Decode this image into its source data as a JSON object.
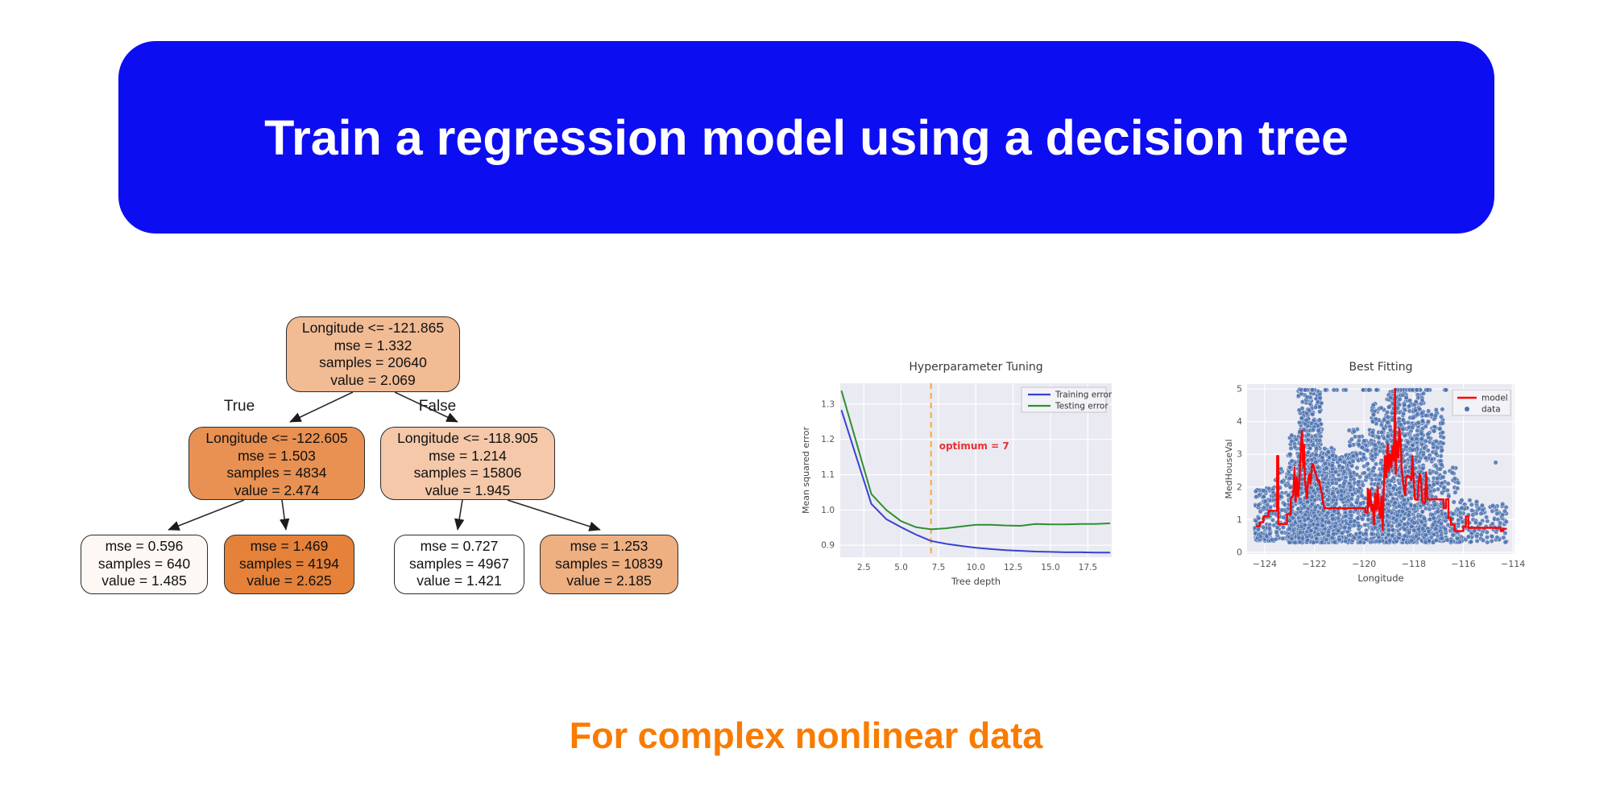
{
  "banner": {
    "title": "Train a regression model using a decision tree",
    "bg_color": "#0d0df2",
    "text_color": "#ffffff"
  },
  "caption": {
    "text": "For complex nonlinear data",
    "color": "#f97b00"
  },
  "tree": {
    "edge_labels": {
      "true": "True",
      "false": "False"
    },
    "nodes": [
      {
        "id": "root",
        "fill": "#f1bb94",
        "lines": [
          "Longitude <= -121.865",
          "mse = 1.332",
          "samples = 20640",
          "value = 2.069"
        ]
      },
      {
        "id": "l2l",
        "fill": "#e89152",
        "lines": [
          "Longitude <= -122.605",
          "mse = 1.503",
          "samples = 4834",
          "value = 2.474"
        ]
      },
      {
        "id": "l2r",
        "fill": "#f4c8a9",
        "lines": [
          "Longitude <= -118.905",
          "mse = 1.214",
          "samples = 15806",
          "value = 1.945"
        ]
      },
      {
        "id": "leaf1",
        "fill": "#fdf8f3",
        "lines": [
          "mse = 0.596",
          "samples = 640",
          "value = 1.485"
        ]
      },
      {
        "id": "leaf2",
        "fill": "#e58139",
        "lines": [
          "mse = 1.469",
          "samples = 4194",
          "value = 2.625"
        ]
      },
      {
        "id": "leaf3",
        "fill": "#ffffff",
        "lines": [
          "mse = 0.727",
          "samples = 4967",
          "value = 1.421"
        ]
      },
      {
        "id": "leaf4",
        "fill": "#eeaf81",
        "lines": [
          "mse = 1.253",
          "samples = 10839",
          "value = 2.185"
        ]
      }
    ]
  },
  "chart_data": [
    {
      "type": "line",
      "title": "Hyperparameter Tuning",
      "xlabel": "Tree depth",
      "ylabel": "Mean squared error",
      "x": [
        1,
        2,
        3,
        4,
        5,
        6,
        7,
        8,
        9,
        10,
        11,
        12,
        13,
        14,
        15,
        16,
        17,
        18,
        19
      ],
      "series": [
        {
          "name": "Training error",
          "color": "#3743cf",
          "values": [
            1.283,
            1.15,
            1.017,
            0.974,
            0.951,
            0.93,
            0.912,
            0.904,
            0.898,
            0.893,
            0.889,
            0.886,
            0.884,
            0.882,
            0.881,
            0.88,
            0.88,
            0.879,
            0.879
          ]
        },
        {
          "name": "Testing error",
          "color": "#2f9032",
          "values": [
            1.338,
            1.192,
            1.045,
            1.0,
            0.968,
            0.951,
            0.945,
            0.948,
            0.953,
            0.958,
            0.958,
            0.956,
            0.955,
            0.96,
            0.959,
            0.959,
            0.96,
            0.96,
            0.962
          ]
        }
      ],
      "annotation": {
        "text": "optimum = 7",
        "x": 7,
        "text_color": "#e83030",
        "line_color": "#ffa733"
      },
      "xticks": [
        2.5,
        5.0,
        7.5,
        10.0,
        12.5,
        15.0,
        17.5
      ],
      "yticks": [
        0.9,
        1.0,
        1.1,
        1.2,
        1.3
      ],
      "xlim": [
        0.92,
        19.1
      ],
      "ylim": [
        0.866,
        1.359
      ],
      "grid": true,
      "bg": "#eaeaf2",
      "legend_position": "upper right"
    },
    {
      "type": "scatter",
      "title": "Best Fitting",
      "xlabel": "Longitude",
      "ylabel": "MedHouseVal",
      "xticks": [
        -124,
        -122,
        -120,
        -118,
        -116,
        -114
      ],
      "yticks": [
        0,
        1,
        2,
        3,
        4,
        5
      ],
      "xlim": [
        -124.71,
        -113.94
      ],
      "ylim": [
        -0.05,
        5.15
      ],
      "grid": true,
      "bg": "#eaeaf2",
      "legend_position": "upper right",
      "model_line": {
        "name": "model",
        "color": "#ff0000",
        "points": [
          [
            -124.35,
            0.8
          ],
          [
            -124.2,
            0.8
          ],
          [
            -124.2,
            0.92
          ],
          [
            -124.05,
            0.92
          ],
          [
            -124.05,
            1.1
          ],
          [
            -123.85,
            1.1
          ],
          [
            -123.85,
            1.27
          ],
          [
            -123.5,
            1.27
          ],
          [
            -123.5,
            2.95
          ],
          [
            -123.45,
            2.95
          ],
          [
            -123.45,
            0.87
          ],
          [
            -123.1,
            0.87
          ],
          [
            -123.1,
            1.17
          ],
          [
            -122.95,
            1.17
          ],
          [
            -122.95,
            1.62
          ],
          [
            -122.85,
            1.75
          ],
          [
            -122.8,
            2.6
          ],
          [
            -122.75,
            1.55
          ],
          [
            -122.7,
            2.3
          ],
          [
            -122.65,
            1.7
          ],
          [
            -122.6,
            2.2
          ],
          [
            -122.55,
            3.1
          ],
          [
            -122.5,
            3.72
          ],
          [
            -122.45,
            2.6
          ],
          [
            -122.42,
            3.3
          ],
          [
            -122.38,
            2.2
          ],
          [
            -122.3,
            1.65
          ],
          [
            -122.25,
            2.25
          ],
          [
            -122.2,
            2.4
          ],
          [
            -122.15,
            2.1
          ],
          [
            -122.1,
            2.65
          ],
          [
            -122.05,
            2.7
          ],
          [
            -122.0,
            2.55
          ],
          [
            -121.95,
            2.4
          ],
          [
            -121.9,
            2.3
          ],
          [
            -121.85,
            2.15
          ],
          [
            -121.8,
            2.2
          ],
          [
            -121.75,
            1.95
          ],
          [
            -121.7,
            1.8
          ],
          [
            -121.65,
            1.55
          ],
          [
            -121.6,
            1.35
          ],
          [
            -119.95,
            1.35
          ],
          [
            -119.95,
            1.22
          ],
          [
            -119.85,
            1.22
          ],
          [
            -119.85,
            1.95
          ],
          [
            -119.8,
            1.4
          ],
          [
            -119.75,
            1.9
          ],
          [
            -119.7,
            1.3
          ],
          [
            -119.65,
            1.45
          ],
          [
            -119.6,
            0.85
          ],
          [
            -119.55,
            1.8
          ],
          [
            -119.5,
            1.3
          ],
          [
            -119.45,
            2.0
          ],
          [
            -119.4,
            1.3
          ],
          [
            -119.35,
            1.05
          ],
          [
            -119.3,
            1.7
          ],
          [
            -119.25,
            0.68
          ],
          [
            -119.2,
            2.1
          ],
          [
            -119.15,
            2.95
          ],
          [
            -119.1,
            2.3
          ],
          [
            -119.05,
            3.3
          ],
          [
            -119.0,
            2.5
          ],
          [
            -118.95,
            3.0
          ],
          [
            -118.9,
            2.6
          ],
          [
            -118.85,
            3.25
          ],
          [
            -118.8,
            2.8
          ],
          [
            -118.75,
            5.0
          ],
          [
            -118.72,
            2.4
          ],
          [
            -118.68,
            3.4
          ],
          [
            -118.62,
            2.9
          ],
          [
            -118.58,
            3.8
          ],
          [
            -118.52,
            3.3
          ],
          [
            -118.48,
            2.5
          ],
          [
            -118.42,
            2.1
          ],
          [
            -118.35,
            1.75
          ],
          [
            -118.3,
            2.3
          ],
          [
            -118.25,
            2.35
          ],
          [
            -118.15,
            2.3
          ],
          [
            -118.1,
            2.2
          ],
          [
            -118.05,
            2.95
          ],
          [
            -118.0,
            2.2
          ],
          [
            -117.95,
            1.62
          ],
          [
            -117.85,
            1.6
          ],
          [
            -117.8,
            2.15
          ],
          [
            -117.75,
            2.4
          ],
          [
            -117.7,
            2.1
          ],
          [
            -117.65,
            1.55
          ],
          [
            -117.55,
            1.5
          ],
          [
            -117.5,
            2.45
          ],
          [
            -117.45,
            1.62
          ],
          [
            -116.8,
            1.62
          ],
          [
            -116.8,
            1.35
          ],
          [
            -116.7,
            1.35
          ],
          [
            -116.7,
            1.62
          ],
          [
            -116.6,
            1.62
          ],
          [
            -116.6,
            1.05
          ],
          [
            -116.5,
            1.05
          ],
          [
            -116.5,
            0.85
          ],
          [
            -116.35,
            0.85
          ],
          [
            -116.35,
            0.65
          ],
          [
            -116.0,
            0.65
          ],
          [
            -116.0,
            0.78
          ],
          [
            -115.9,
            0.78
          ],
          [
            -115.9,
            1.1
          ],
          [
            -115.8,
            1.1
          ],
          [
            -115.8,
            0.75
          ],
          [
            -114.5,
            0.75
          ],
          [
            -114.5,
            0.65
          ],
          [
            -114.4,
            0.65
          ],
          [
            -114.4,
            0.72
          ],
          [
            -114.25,
            0.72
          ]
        ]
      },
      "data_points": {
        "name": "data",
        "color": "#4c72b0",
        "seed": 20640,
        "clusters": [
          {
            "x": [
              -124.4,
              -123.6
            ],
            "y": [
              0.35,
              2.0
            ],
            "n": 140,
            "pow": 1.4
          },
          {
            "x": [
              -123.6,
              -123.0
            ],
            "y": [
              0.4,
              2.6
            ],
            "n": 80,
            "pow": 1.3
          },
          {
            "x": [
              -123.05,
              -122.6
            ],
            "y": [
              0.3,
              3.6
            ],
            "n": 180,
            "pow": 1.3
          },
          {
            "x": [
              -122.65,
              -121.7
            ],
            "y": [
              0.3,
              5.0
            ],
            "n": 650,
            "pow": 1.5
          },
          {
            "x": [
              -121.7,
              -121.2
            ],
            "y": [
              0.3,
              3.2
            ],
            "n": 220,
            "pow": 1.3
          },
          {
            "x": [
              -121.3,
              -120.5
            ],
            "y": [
              0.3,
              3.0
            ],
            "n": 260,
            "pow": 1.2
          },
          {
            "x": [
              -120.6,
              -119.6
            ],
            "y": [
              0.3,
              3.8
            ],
            "n": 260,
            "pow": 1.3
          },
          {
            "x": [
              -119.7,
              -119.0
            ],
            "y": [
              0.3,
              4.6
            ],
            "n": 280,
            "pow": 1.4
          },
          {
            "x": [
              -119.1,
              -117.6
            ],
            "y": [
              0.3,
              5.0
            ],
            "n": 850,
            "pow": 1.45
          },
          {
            "x": [
              -117.7,
              -116.8
            ],
            "y": [
              0.3,
              4.4
            ],
            "n": 300,
            "pow": 1.5
          },
          {
            "x": [
              -116.9,
              -116.2
            ],
            "y": [
              0.3,
              2.6
            ],
            "n": 90,
            "pow": 1.3
          },
          {
            "x": [
              -116.3,
              -115.4
            ],
            "y": [
              0.3,
              1.6
            ],
            "n": 70,
            "pow": 1.2
          },
          {
            "x": [
              -115.5,
              -114.25
            ],
            "y": [
              0.3,
              1.5
            ],
            "n": 70,
            "pow": 1.2
          }
        ],
        "top_row": {
          "y": 4.97,
          "segments": [
            [
              -122.6,
              -121.9,
              14
            ],
            [
              -121.9,
              -120.2,
              6
            ],
            [
              -120.1,
              -119.3,
              16
            ],
            [
              -119.0,
              -117.3,
              26
            ],
            [
              -116.9,
              -116.4,
              5
            ]
          ]
        },
        "outliers": [
          [
            -114.7,
            2.75
          ]
        ]
      }
    }
  ]
}
